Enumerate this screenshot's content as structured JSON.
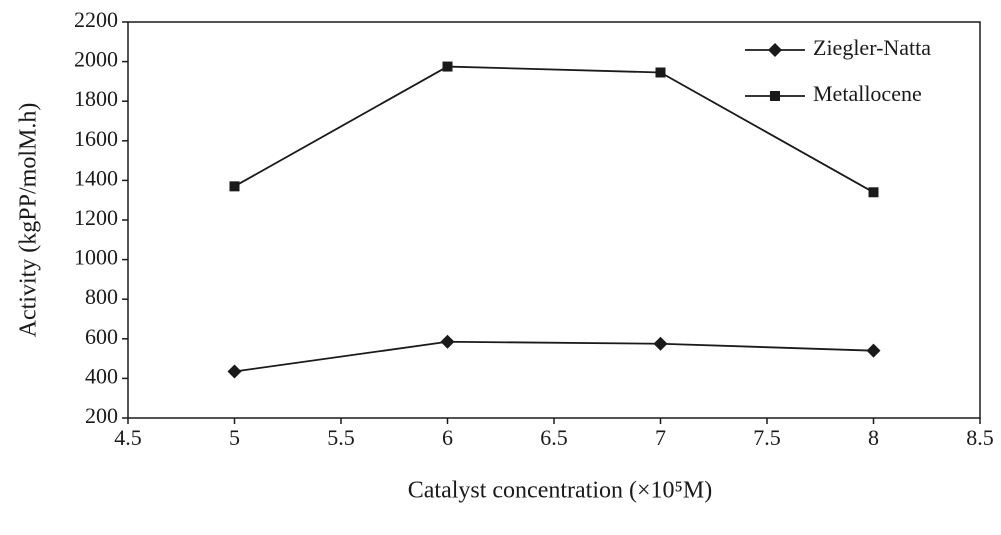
{
  "chart_data": {
    "type": "line",
    "x_label": "Catalyst concentration (×10⁵M)",
    "y_label": "Activity (kgPP/molM.h)",
    "x": [
      5,
      6,
      7,
      8
    ],
    "series": [
      {
        "name": "Ziegler-Natta",
        "color": "#1a1a1a",
        "marker": "diamond",
        "values": [
          435,
          585,
          575,
          540
        ]
      },
      {
        "name": "Metallocene",
        "color": "#1a1a1a",
        "marker": "square",
        "values": [
          1370,
          1975,
          1945,
          1340
        ]
      }
    ],
    "xlim": [
      4.5,
      8.5
    ],
    "xticks": [
      4.5,
      5,
      5.5,
      6,
      6.5,
      7,
      7.5,
      8,
      8.5
    ],
    "ylim": [
      200,
      2200
    ],
    "yticks": [
      200,
      400,
      600,
      800,
      1000,
      1200,
      1400,
      1600,
      1800,
      2000,
      2200
    ],
    "grid": false,
    "legend": "upper right"
  }
}
